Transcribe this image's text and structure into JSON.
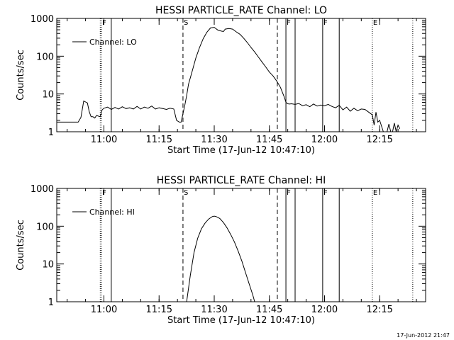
{
  "footer_timestamp": "17-Jun-2012 21:47",
  "chart_data": [
    {
      "type": "line",
      "title": "HESSI PARTICLE_RATE Channel: LO",
      "xlabel": "Start Time (17-Jun-12 10:47:10)",
      "ylabel": "Counts/sec",
      "y_scale": "log",
      "ylim": [
        1,
        1000
      ],
      "xlim": [
        "10:47:10",
        "12:27:30"
      ],
      "x_ticks": [
        "11:00",
        "11:15",
        "11:30",
        "11:45",
        "12:00",
        "12:15"
      ],
      "y_ticks": [
        "1",
        "10",
        "100",
        "1000"
      ],
      "legend": {
        "placement": "top-left",
        "entries": [
          "Channel: LO"
        ]
      },
      "grid": false,
      "markers": [
        {
          "label": "",
          "time": "10:59:00",
          "style": "dotted"
        },
        {
          "label": "F",
          "time": "10:59:20",
          "style": "dotted"
        },
        {
          "label": "",
          "time": "11:02:00",
          "style": "solid"
        },
        {
          "label": "S",
          "time": "11:21:30",
          "style": "dashed"
        },
        {
          "label": "",
          "time": "11:47:10",
          "style": "dashed"
        },
        {
          "label": "F",
          "time": "11:49:30",
          "style": "solid"
        },
        {
          "label": "",
          "time": "11:52:00",
          "style": "solid"
        },
        {
          "label": "F",
          "time": "11:59:30",
          "style": "solid"
        },
        {
          "label": "",
          "time": "12:04:00",
          "style": "solid"
        },
        {
          "label": "E",
          "time": "12:13:00",
          "style": "dotted"
        },
        {
          "label": "",
          "time": "12:24:00",
          "style": "dotted"
        }
      ],
      "series": [
        {
          "name": "Channel: LO",
          "x": [
            "10:47:10",
            "10:53:00",
            "10:53:45",
            "10:54:30",
            "10:55:30",
            "10:56:00",
            "10:56:30",
            "10:57:00",
            "10:57:30",
            "10:58:00",
            "10:59:00",
            "10:59:30",
            "11:00:00",
            "11:01:00",
            "11:02:00",
            "11:03:00",
            "11:04:00",
            "11:05:00",
            "11:06:00",
            "11:07:00",
            "11:08:00",
            "11:09:00",
            "11:10:00",
            "11:11:00",
            "11:12:00",
            "11:13:00",
            "11:14:00",
            "11:15:00",
            "11:16:00",
            "11:17:00",
            "11:18:00",
            "11:19:00",
            "11:19:45",
            "11:20:30",
            "11:21:00",
            "11:21:30",
            "11:22:00",
            "11:22:30",
            "11:23:00",
            "11:24:00",
            "11:25:00",
            "11:26:00",
            "11:27:00",
            "11:28:00",
            "11:29:00",
            "11:30:00",
            "11:31:00",
            "11:32:00",
            "11:32:30",
            "11:33:00",
            "11:34:00",
            "11:35:00",
            "11:36:00",
            "11:37:00",
            "11:38:00",
            "11:39:00",
            "11:40:00",
            "11:41:00",
            "11:42:00",
            "11:43:00",
            "11:44:00",
            "11:45:00",
            "11:46:00",
            "11:47:00",
            "11:48:00",
            "11:49:00",
            "11:49:30",
            "11:50:00",
            "11:50:30",
            "11:51:00",
            "11:52:00",
            "11:53:00",
            "11:54:00",
            "11:55:00",
            "11:56:00",
            "11:57:00",
            "11:58:00",
            "11:59:00",
            "12:00:00",
            "12:01:00",
            "12:02:00",
            "12:03:00",
            "12:04:00",
            "12:05:00",
            "12:06:00",
            "12:07:00",
            "12:08:00",
            "12:09:00",
            "12:10:00",
            "12:11:00",
            "12:12:00",
            "12:13:00",
            "12:13:30",
            "12:14:00",
            "12:14:30",
            "12:15:00",
            "12:16:00",
            "12:17:00",
            "12:17:30",
            "12:18:00",
            "12:18:30",
            "12:19:00",
            "12:19:30",
            "12:20:00",
            "12:20:30"
          ],
          "y": [
            1.8,
            1.8,
            2.4,
            6.5,
            5.8,
            3.4,
            2.5,
            2.5,
            2.3,
            2.7,
            2.5,
            3.8,
            4.2,
            4.5,
            3.9,
            4.4,
            4.0,
            4.6,
            4.1,
            4.3,
            4.0,
            4.7,
            4.0,
            4.5,
            4.2,
            4.8,
            4.0,
            4.3,
            4.1,
            3.9,
            4.2,
            4.0,
            2.0,
            1.8,
            1.8,
            3.0,
            5.0,
            9.0,
            18,
            40,
            90,
            170,
            290,
            430,
            560,
            580,
            490,
            460,
            450,
            520,
            540,
            520,
            440,
            380,
            300,
            230,
            170,
            130,
            95,
            70,
            52,
            38,
            30,
            22,
            15,
            8.5,
            6.0,
            5.5,
            5.4,
            5.5,
            5.3,
            5.6,
            4.9,
            5.2,
            4.6,
            5.4,
            4.8,
            5.1,
            4.9,
            5.3,
            4.7,
            4.3,
            5.0,
            3.8,
            4.5,
            3.5,
            4.2,
            3.6,
            4.0,
            3.9,
            3.3,
            2.8,
            1.5,
            3.3,
            1.8,
            2.0,
            1.0,
            1.0,
            1.6,
            1.0,
            1.0,
            1.7,
            1.0,
            1.5,
            1.2
          ]
        }
      ]
    },
    {
      "type": "line",
      "title": "HESSI PARTICLE_RATE Channel: HI",
      "xlabel": "Start Time (17-Jun-12 10:47:10)",
      "ylabel": "Counts/sec",
      "y_scale": "log",
      "ylim": [
        1,
        1000
      ],
      "xlim": [
        "10:47:10",
        "12:27:30"
      ],
      "x_ticks": [
        "11:00",
        "11:15",
        "11:30",
        "11:45",
        "12:00",
        "12:15"
      ],
      "y_ticks": [
        "1",
        "10",
        "100",
        "1000"
      ],
      "legend": {
        "placement": "top-left",
        "entries": [
          "Channel: HI"
        ]
      },
      "grid": false,
      "markers": [
        {
          "label": "",
          "time": "10:59:00",
          "style": "dotted"
        },
        {
          "label": "F",
          "time": "10:59:20",
          "style": "dotted"
        },
        {
          "label": "",
          "time": "11:02:00",
          "style": "solid"
        },
        {
          "label": "S",
          "time": "11:21:30",
          "style": "dashed"
        },
        {
          "label": "",
          "time": "11:47:10",
          "style": "dashed"
        },
        {
          "label": "F",
          "time": "11:49:30",
          "style": "solid"
        },
        {
          "label": "",
          "time": "11:52:00",
          "style": "solid"
        },
        {
          "label": "F",
          "time": "11:59:30",
          "style": "solid"
        },
        {
          "label": "",
          "time": "12:04:00",
          "style": "solid"
        },
        {
          "label": "E",
          "time": "12:13:00",
          "style": "dotted"
        },
        {
          "label": "",
          "time": "12:24:00",
          "style": "dotted"
        }
      ],
      "series": [
        {
          "name": "Channel: HI",
          "x": [
            "11:22:30",
            "11:23:30",
            "11:24:30",
            "11:25:30",
            "11:26:30",
            "11:27:30",
            "11:28:30",
            "11:29:30",
            "11:30:00",
            "11:30:30",
            "11:31:30",
            "11:32:30",
            "11:33:30",
            "11:34:30",
            "11:35:30",
            "11:36:30",
            "11:37:30",
            "11:38:30",
            "11:39:30",
            "11:40:30",
            "11:41:00"
          ],
          "y": [
            1.0,
            5.0,
            20,
            48,
            85,
            120,
            155,
            180,
            185,
            180,
            160,
            125,
            90,
            60,
            38,
            22,
            12,
            6.0,
            3.0,
            1.5,
            1.0
          ]
        }
      ]
    }
  ]
}
